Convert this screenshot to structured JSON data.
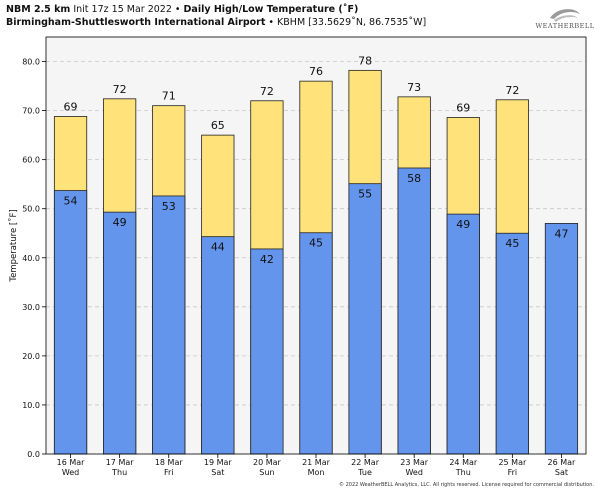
{
  "header": {
    "model": "NBM 2.5 km",
    "init": "Init 17z 15 Mar 2022",
    "bullet1": "•",
    "product": "Daily High/Low Temperature (˚F)",
    "station": "Birmingham-Shuttlesworth International Airport",
    "bullet2": "•",
    "coords": "KBHM [33.5629˚N, 86.7535˚W]"
  },
  "logo": {
    "text": "WEATHERBELL"
  },
  "copyright": "© 2022 WeatherBELL Analytics, LLC. All rights reserved. License required for commercial distribution.",
  "colors": {
    "high": "#ffe27a",
    "low": "#6495ed",
    "plot_bg": "#f5f5f5",
    "grid": "#c8c8c8",
    "edge": "#222222"
  },
  "chart_data": {
    "type": "bar",
    "title": "Daily High/Low Temperature (˚F)",
    "ylabel": "Temperature [˚F]",
    "xlabel": "",
    "ylim": [
      0,
      85
    ],
    "yticks": [
      "0.0",
      "10.0",
      "20.0",
      "30.0",
      "40.0",
      "50.0",
      "60.0",
      "70.0",
      "80.0"
    ],
    "grid": true,
    "categories": [
      "16 Mar",
      "17 Mar",
      "18 Mar",
      "19 Mar",
      "20 Mar",
      "21 Mar",
      "22 Mar",
      "23 Mar",
      "24 Mar",
      "25 Mar",
      "26 Mar"
    ],
    "weekdays": [
      "Wed",
      "Thu",
      "Fri",
      "Sat",
      "Sun",
      "Mon",
      "Tue",
      "Wed",
      "Thu",
      "Fri",
      "Sat"
    ],
    "series": [
      {
        "name": "High",
        "values": [
          68.8,
          72.4,
          71.0,
          65.0,
          72.0,
          76.0,
          78.2,
          72.8,
          68.6,
          72.2,
          null
        ],
        "labels": [
          "69",
          "72",
          "71",
          "65",
          "72",
          "76",
          "78",
          "73",
          "69",
          "72",
          null
        ]
      },
      {
        "name": "Low",
        "values": [
          53.7,
          49.3,
          52.6,
          44.3,
          41.8,
          45.1,
          55.1,
          58.3,
          48.9,
          45.0,
          47.0
        ],
        "labels": [
          "54",
          "49",
          "53",
          "44",
          "42",
          "45",
          "55",
          "58",
          "49",
          "45",
          "47"
        ]
      }
    ]
  }
}
